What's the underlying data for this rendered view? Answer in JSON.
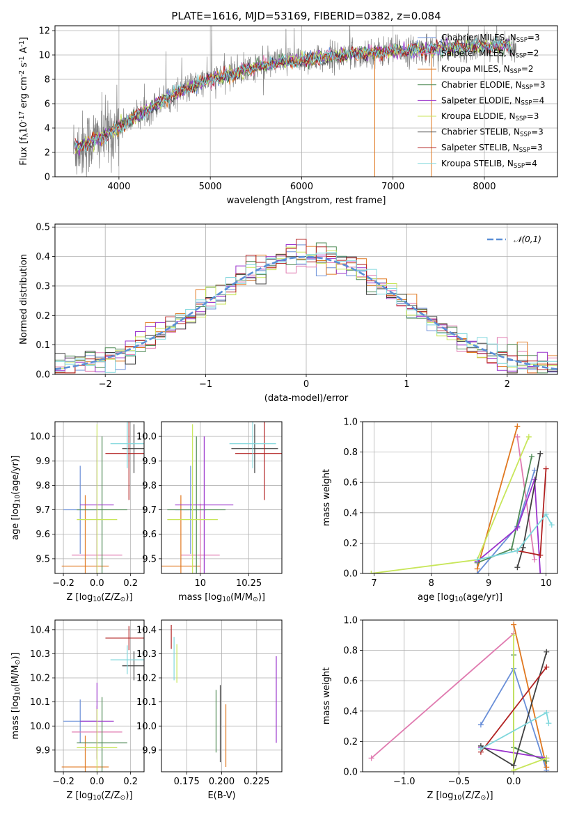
{
  "title": "PLATE=1616, MJD=53169, FIBERID=0382, z=0.084",
  "series": [
    {
      "name": "Chabrier MILES, N$_{SSP}$=3",
      "color": "#6a8fd8",
      "nssp": 3
    },
    {
      "name": "Salpeter MILES, N$_{SSP}$=2",
      "color": "#e07bb0",
      "nssp": 2
    },
    {
      "name": "Kroupa MILES, N$_{SSP}$=2",
      "color": "#e07820",
      "nssp": 2
    },
    {
      "name": "Chabrier ELODIE, N$_{SSP}$=3",
      "color": "#4f8a55",
      "nssp": 3
    },
    {
      "name": "Salpeter ELODIE, N$_{SSP}$=4",
      "color": "#9932cc",
      "nssp": 4
    },
    {
      "name": "Kroupa ELODIE, N$_{SSP}$=3",
      "color": "#c8e65a",
      "nssp": 3
    },
    {
      "name": "Chabrier STELIB, N$_{SSP}$=3",
      "color": "#404040",
      "nssp": 3
    },
    {
      "name": "Salpeter STELIB, N$_{SSP}$=3",
      "color": "#b22222",
      "nssp": 3
    },
    {
      "name": "Kroupa STELIB, N$_{SSP}$=4",
      "color": "#7fd7dc",
      "nssp": 4
    }
  ],
  "chart_data": [
    {
      "id": "spectrum",
      "type": "line",
      "xlabel": "wavelength [Angstrom, rest frame]",
      "ylabel": "Flux [f$_\\lambda$10$^{-17}$ erg cm$^{-2}$ s$^{-1}$ A$^{-1}$]",
      "xlim": [
        3300,
        8800
      ],
      "ylim": [
        0,
        12.4
      ],
      "xticks": [
        4000,
        5000,
        6000,
        7000,
        8000
      ],
      "yticks": [
        0,
        2,
        4,
        6,
        8,
        10,
        12
      ],
      "data_color": "#808080",
      "data_range": [
        3500,
        8350
      ],
      "continuum": {
        "x": [
          3500,
          3800,
          4200,
          4600,
          5000,
          5500,
          6000,
          6500,
          7000,
          7500,
          8000,
          8350
        ],
        "y": [
          2.3,
          3.2,
          5.0,
          6.8,
          8.0,
          9.0,
          9.6,
          10.0,
          10.3,
          10.5,
          10.7,
          10.8
        ]
      }
    },
    {
      "id": "residuals",
      "type": "histogram",
      "xlabel": "(data-model)/error",
      "ylabel": "Normed distribution",
      "xlim": [
        -2.5,
        2.5
      ],
      "ylim": [
        0,
        0.51
      ],
      "xticks": [
        -2,
        -1,
        0,
        1,
        2
      ],
      "yticks": [
        0.0,
        0.1,
        0.2,
        0.3,
        0.4,
        0.5
      ],
      "bin_width": 0.1,
      "reference_label": "$\\mathcal{N}(0,1)$",
      "reference_color": "#5b8fd6"
    },
    {
      "id": "age-vs-Z",
      "type": "errorbar",
      "xlabel": "Z [log$_{10}$(Z/Z$_\\odot$)]",
      "ylabel": "age  [log$_{10}$(age/yr)]",
      "xlim": [
        -0.25,
        0.28
      ],
      "ylim": [
        9.44,
        10.06
      ],
      "xticks": [
        -0.2,
        0.0,
        0.2
      ],
      "yticks": [
        9.5,
        9.6,
        9.7,
        9.8,
        9.9,
        10.0
      ],
      "points": [
        {
          "x": -0.1,
          "xerr": 0.1,
          "y": 9.7,
          "yerr": 0.18
        },
        {
          "x": 0.0,
          "xerr": 0.15,
          "y": 9.515,
          "yerr": 0.21
        },
        {
          "x": -0.07,
          "xerr": 0.14,
          "y": 9.47,
          "yerr": 0.29
        },
        {
          "x": 0.03,
          "xerr": 0.15,
          "y": 9.7,
          "yerr": 0.3
        },
        {
          "x": 0.0,
          "xerr": 0.1,
          "y": 9.72,
          "yerr": 0.28
        },
        {
          "x": 0.0,
          "xerr": 0.12,
          "y": 9.66,
          "yerr": 0.39
        },
        {
          "x": 0.22,
          "xerr": 0.07,
          "y": 9.95,
          "yerr": 0.1
        },
        {
          "x": 0.19,
          "xerr": 0.14,
          "y": 9.93,
          "yerr": 0.19
        },
        {
          "x": 0.18,
          "xerr": 0.1,
          "y": 9.97,
          "yerr": 0.1
        }
      ]
    },
    {
      "id": "age-vs-mass",
      "type": "errorbar",
      "xlabel": "mass [log$_{10}$(M/M$_\\odot$)]",
      "ylabel": "",
      "xlim": [
        9.8,
        10.42
      ],
      "ylim": [
        9.44,
        10.06
      ],
      "xticks": [
        10.0,
        10.25
      ],
      "yticks": [
        9.5,
        9.6,
        9.7,
        9.8,
        9.9,
        10.0
      ],
      "points": [
        {
          "x": 9.95,
          "xerr": 0.08,
          "y": 9.7,
          "yerr": 0.18
        },
        {
          "x": 10.0,
          "xerr": 0.1,
          "y": 9.515,
          "yerr": 0.21
        },
        {
          "x": 9.9,
          "xerr": 0.1,
          "y": 9.47,
          "yerr": 0.29
        },
        {
          "x": 9.98,
          "xerr": 0.15,
          "y": 9.7,
          "yerr": 0.3
        },
        {
          "x": 10.02,
          "xerr": 0.15,
          "y": 9.72,
          "yerr": 0.28
        },
        {
          "x": 9.96,
          "xerr": 0.13,
          "y": 9.66,
          "yerr": 0.39
        },
        {
          "x": 10.28,
          "xerr": 0.12,
          "y": 9.95,
          "yerr": 0.1
        },
        {
          "x": 10.33,
          "xerr": 0.15,
          "y": 9.93,
          "yerr": 0.19
        },
        {
          "x": 10.27,
          "xerr": 0.12,
          "y": 9.97,
          "yerr": 0.1
        }
      ]
    },
    {
      "id": "weight-vs-age",
      "type": "line",
      "xlabel": "age  [log$_{10}$(age/yr)]",
      "ylabel": "mass weight",
      "xlim": [
        6.8,
        10.2
      ],
      "ylim": [
        0,
        1.0
      ],
      "xticks": [
        7,
        8,
        9,
        10
      ],
      "yticks": [
        0.0,
        0.2,
        0.4,
        0.6,
        0.8,
        1.0
      ],
      "lines": [
        {
          "x": [
            8.8,
            9.5,
            9.8
          ],
          "y": [
            0.0,
            0.31,
            0.68
          ]
        },
        {
          "x": [
            9.5,
            9.8
          ],
          "y": [
            0.9,
            0.09
          ]
        },
        {
          "x": [
            8.8,
            9.5
          ],
          "y": [
            0.03,
            0.97
          ]
        },
        {
          "x": [
            8.8,
            9.4,
            9.75
          ],
          "y": [
            0.07,
            0.16,
            0.77
          ]
        },
        {
          "x": [
            8.8,
            9.5,
            9.8,
            9.9
          ],
          "y": [
            0.08,
            0.3,
            0.62,
            0.0
          ]
        },
        {
          "x": [
            6.95,
            8.8,
            9.7
          ],
          "y": [
            0.0,
            0.09,
            0.9
          ]
        },
        {
          "x": [
            9.5,
            9.6,
            9.9
          ],
          "y": [
            0.04,
            0.17,
            0.79
          ]
        },
        {
          "x": [
            9.5,
            9.9,
            10.0
          ],
          "y": [
            0.15,
            0.12,
            0.69
          ]
        },
        {
          "x": [
            8.8,
            9.5,
            10.0,
            10.1
          ],
          "y": [
            0.09,
            0.15,
            0.39,
            0.32
          ]
        }
      ]
    },
    {
      "id": "mass-vs-Z",
      "type": "errorbar",
      "xlabel": "Z [log$_{10}$(Z/Z$_\\odot$)]",
      "ylabel": "mass [log$_{10}$(M/M$_\\odot$)]",
      "xlim": [
        -0.25,
        0.28
      ],
      "ylim": [
        9.81,
        10.44
      ],
      "xticks": [
        -0.2,
        0.0,
        0.2
      ],
      "yticks": [
        9.9,
        10.0,
        10.1,
        10.2,
        10.3,
        10.4
      ],
      "points": [
        {
          "x": -0.1,
          "xerr": 0.1,
          "y": 10.02,
          "yerr": 0.09
        },
        {
          "x": 0.0,
          "xerr": 0.15,
          "y": 9.975,
          "yerr": 0.11
        },
        {
          "x": -0.07,
          "xerr": 0.14,
          "y": 9.83,
          "yerr": 0.13
        },
        {
          "x": 0.03,
          "xerr": 0.15,
          "y": 9.93,
          "yerr": 0.19
        },
        {
          "x": 0.0,
          "xerr": 0.1,
          "y": 10.02,
          "yerr": 0.16
        },
        {
          "x": 0.0,
          "xerr": 0.12,
          "y": 9.91,
          "yerr": 0.16
        },
        {
          "x": 0.22,
          "xerr": 0.07,
          "y": 10.25,
          "yerr": 0.06
        },
        {
          "x": 0.19,
          "xerr": 0.14,
          "y": 10.365,
          "yerr": 0.05
        },
        {
          "x": 0.18,
          "xerr": 0.1,
          "y": 10.275,
          "yerr": 0.06
        }
      ]
    },
    {
      "id": "mass-vs-EBV",
      "type": "errorbar",
      "xlabel": "E(B-V)",
      "ylabel": "",
      "xlim": [
        0.157,
        0.243
      ],
      "ylim": [
        9.81,
        10.44
      ],
      "xticks": [
        0.175,
        0.2,
        0.225
      ],
      "xticklabels": [
        "0.175",
        "0.200",
        "0.225"
      ],
      "yticks": [
        9.9,
        10.0,
        10.1,
        10.2,
        10.3,
        10.4
      ],
      "points": [
        {
          "x": 0.196,
          "xerr": 0,
          "y": 10.02,
          "yerr": 0.13
        },
        {
          "x": 0.203,
          "xerr": 0,
          "y": 9.96,
          "yerr": 0.13
        },
        {
          "x": 0.199,
          "xerr": 0,
          "y": 10.01,
          "yerr": 0.16
        },
        {
          "x": 0.239,
          "xerr": 0,
          "y": 10.11,
          "yerr": 0.18
        },
        {
          "x": 0.168,
          "xerr": 0,
          "y": 10.26,
          "yerr": 0.08
        },
        {
          "x": 0.164,
          "xerr": 0,
          "y": 10.37,
          "yerr": 0.05
        },
        {
          "x": 0.166,
          "xerr": 0,
          "y": 10.28,
          "yerr": 0.09
        }
      ],
      "point_series": [
        3,
        2,
        6,
        4,
        5,
        7,
        8
      ]
    },
    {
      "id": "weight-vs-Z",
      "type": "line",
      "xlabel": "Z [log$_{10}$(Z/Z$_\\odot$)]",
      "ylabel": "mass weight",
      "xlim": [
        -1.38,
        0.4
      ],
      "ylim": [
        0,
        1.0
      ],
      "xticks": [
        -1.0,
        -0.5,
        0.0
      ],
      "yticks": [
        0.0,
        0.2,
        0.4,
        0.6,
        0.8,
        1.0
      ],
      "lines": [
        {
          "x": [
            -0.3,
            0.0,
            0.3
          ],
          "y": [
            0.31,
            0.68,
            0.01
          ]
        },
        {
          "x": [
            -1.3,
            0.0
          ],
          "y": [
            0.09,
            0.91
          ]
        },
        {
          "x": [
            0.0,
            0.3
          ],
          "y": [
            0.97,
            0.03
          ]
        },
        {
          "x": [
            0.0,
            0.0,
            0.3
          ],
          "y": [
            0.77,
            0.16,
            0.07
          ]
        },
        {
          "x": [
            -0.3,
            0.3
          ],
          "y": [
            0.16,
            0.09
          ]
        },
        {
          "x": [
            0.0,
            0.0,
            0.3
          ],
          "y": [
            0.9,
            0.01,
            0.09
          ]
        },
        {
          "x": [
            -0.3,
            0.0,
            0.3
          ],
          "y": [
            0.17,
            0.04,
            0.79
          ]
        },
        {
          "x": [
            -0.3,
            0.3
          ],
          "y": [
            0.13,
            0.69
          ]
        },
        {
          "x": [
            -0.3,
            0.3,
            0.32
          ],
          "y": [
            0.15,
            0.39,
            0.32
          ]
        }
      ]
    }
  ]
}
